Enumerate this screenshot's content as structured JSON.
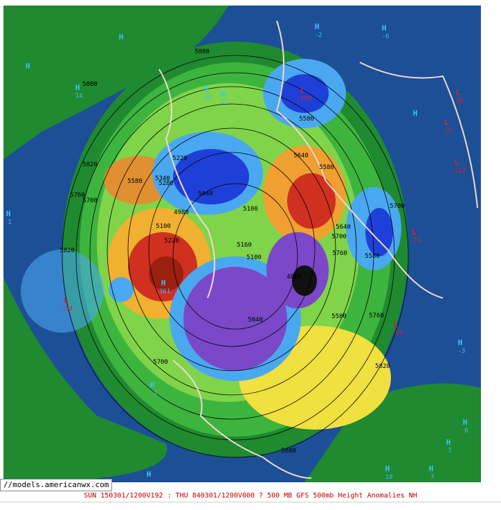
{
  "url_box": "//models.americanwx.com",
  "caption": "SUN 150301/1200V192 : THU 840301/1200V000  ? 500 MB GFS 500mb Height Anomalies NH",
  "highs": [
    {
      "symbol": "H",
      "value": -2
    },
    {
      "symbol": "H",
      "value": -6
    },
    {
      "symbol": "H"
    },
    {
      "symbol": "H",
      "value": 14
    },
    {
      "symbol": "H",
      "value": 30
    },
    {
      "symbol": "H",
      "value": 32
    },
    {
      "symbol": "H"
    },
    {
      "symbol": "H",
      "value": 1
    },
    {
      "symbol": "H",
      "value": -3
    },
    {
      "symbol": "H",
      "value": -1
    },
    {
      "symbol": "H",
      "value": 6
    },
    {
      "symbol": "H",
      "value": 7
    },
    {
      "symbol": "H",
      "value": 10
    },
    {
      "symbol": "H",
      "value": 7
    },
    {
      "symbol": "H"
    },
    {
      "symbol": "H",
      "value": 361
    },
    {
      "symbol": "H"
    }
  ],
  "lows": [
    {
      "symbol": "L",
      "value": -150
    },
    {
      "symbol": "L",
      "value": 38
    },
    {
      "symbol": "L",
      "value": -27
    },
    {
      "symbol": "L",
      "value": -74
    },
    {
      "symbol": "L",
      "value": -54
    },
    {
      "symbol": "L",
      "value": -69
    },
    {
      "symbol": "L",
      "value": -123
    }
  ],
  "contour_labels": [
    5880,
    5880,
    5820,
    5760,
    5700,
    5820,
    5580,
    5340,
    5280,
    5220,
    5640,
    5580,
    5700,
    5640,
    5700,
    5760,
    5580,
    5160,
    5100,
    5100,
    5040,
    4980,
    5580,
    5760,
    5820,
    5700,
    5880,
    5580,
    5040,
    5100,
    5220,
    4860
  ]
}
